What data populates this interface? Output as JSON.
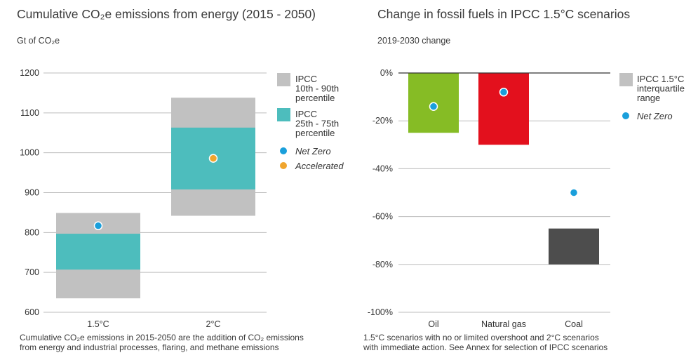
{
  "left_panel": {
    "title": "Cumulative CO₂e emissions from energy (2015 - 2050)",
    "subtitle": "Gt of CO₂e",
    "note_line1": "Cumulative CO₂e emissions in 2015-2050 are the addition of CO₂ emissions",
    "note_line2": "from energy and industrial processes, flaring, and methane emissions"
  },
  "right_panel": {
    "title": "Change in fossil fuels in IPCC 1.5°C scenarios",
    "subtitle": "2019-2030 change",
    "note_line1": "1.5°C scenarios with no or limited overshoot and 2°C scenarios",
    "note_line2": "with immediate action. See Annex for selection of IPCC scenarios"
  },
  "colors": {
    "gray": "#c1c1c1",
    "teal": "#4dbdbd",
    "net_zero": "#1a9fdb",
    "accelerated": "#f0a52d",
    "oil": "#86bc25",
    "natural_gas": "#e3101d",
    "coal": "#4d4d4d",
    "grid": "#bdbdbd",
    "zero_line": "#333333"
  },
  "chart_data": [
    {
      "type": "box",
      "ylim": [
        600,
        1200
      ],
      "yticks": [
        "600",
        "700",
        "800",
        "900",
        "1000",
        "1100",
        "1200"
      ],
      "categories": [
        "1.5°C",
        "2°C"
      ],
      "series": [
        {
          "name": "IPCC 10th - 90th percentile",
          "low": [
            635,
            842
          ],
          "high": [
            849,
            1138
          ]
        },
        {
          "name": "IPCC 25th - 75th percentile",
          "low": [
            707,
            908
          ],
          "high": [
            797,
            1063
          ]
        },
        {
          "name": "Net Zero",
          "values": [
            817,
            986
          ]
        },
        {
          "name": "Accelerated",
          "values": [
            null,
            986
          ]
        }
      ],
      "legend": {
        "position": "right",
        "entries": [
          {
            "kind": "square",
            "color_key": "gray",
            "lines": [
              "IPCC",
              "10th - 90th",
              "percentile"
            ]
          },
          {
            "kind": "square",
            "color_key": "teal",
            "lines": [
              "IPCC",
              "25th - 75th",
              "percentile"
            ]
          },
          {
            "kind": "dot",
            "color_key": "net_zero",
            "lines": [
              "Net Zero"
            ]
          },
          {
            "kind": "dot",
            "color_key": "accelerated",
            "lines": [
              "Accelerated"
            ]
          }
        ]
      }
    },
    {
      "type": "bar",
      "ylim": [
        -100,
        0
      ],
      "yticks": [
        "0%",
        "-20%",
        "-40%",
        "-60%",
        "-80%",
        "-100%"
      ],
      "categories": [
        "Oil",
        "Natural gas",
        "Coal"
      ],
      "series": [
        {
          "name": "IPCC 1.5°C interquartile range",
          "low": [
            -25,
            -30,
            -80
          ],
          "high": [
            0,
            0,
            -65
          ]
        },
        {
          "name": "Net Zero",
          "values": [
            -14,
            -8,
            -50
          ]
        }
      ],
      "legend": {
        "position": "right",
        "entries": [
          {
            "kind": "square",
            "color_key": "gray",
            "lines": [
              "IPCC 1.5°C",
              "interquartile",
              "range"
            ]
          },
          {
            "kind": "dot",
            "color_key": "net_zero",
            "lines": [
              "Net Zero"
            ]
          }
        ]
      }
    }
  ]
}
